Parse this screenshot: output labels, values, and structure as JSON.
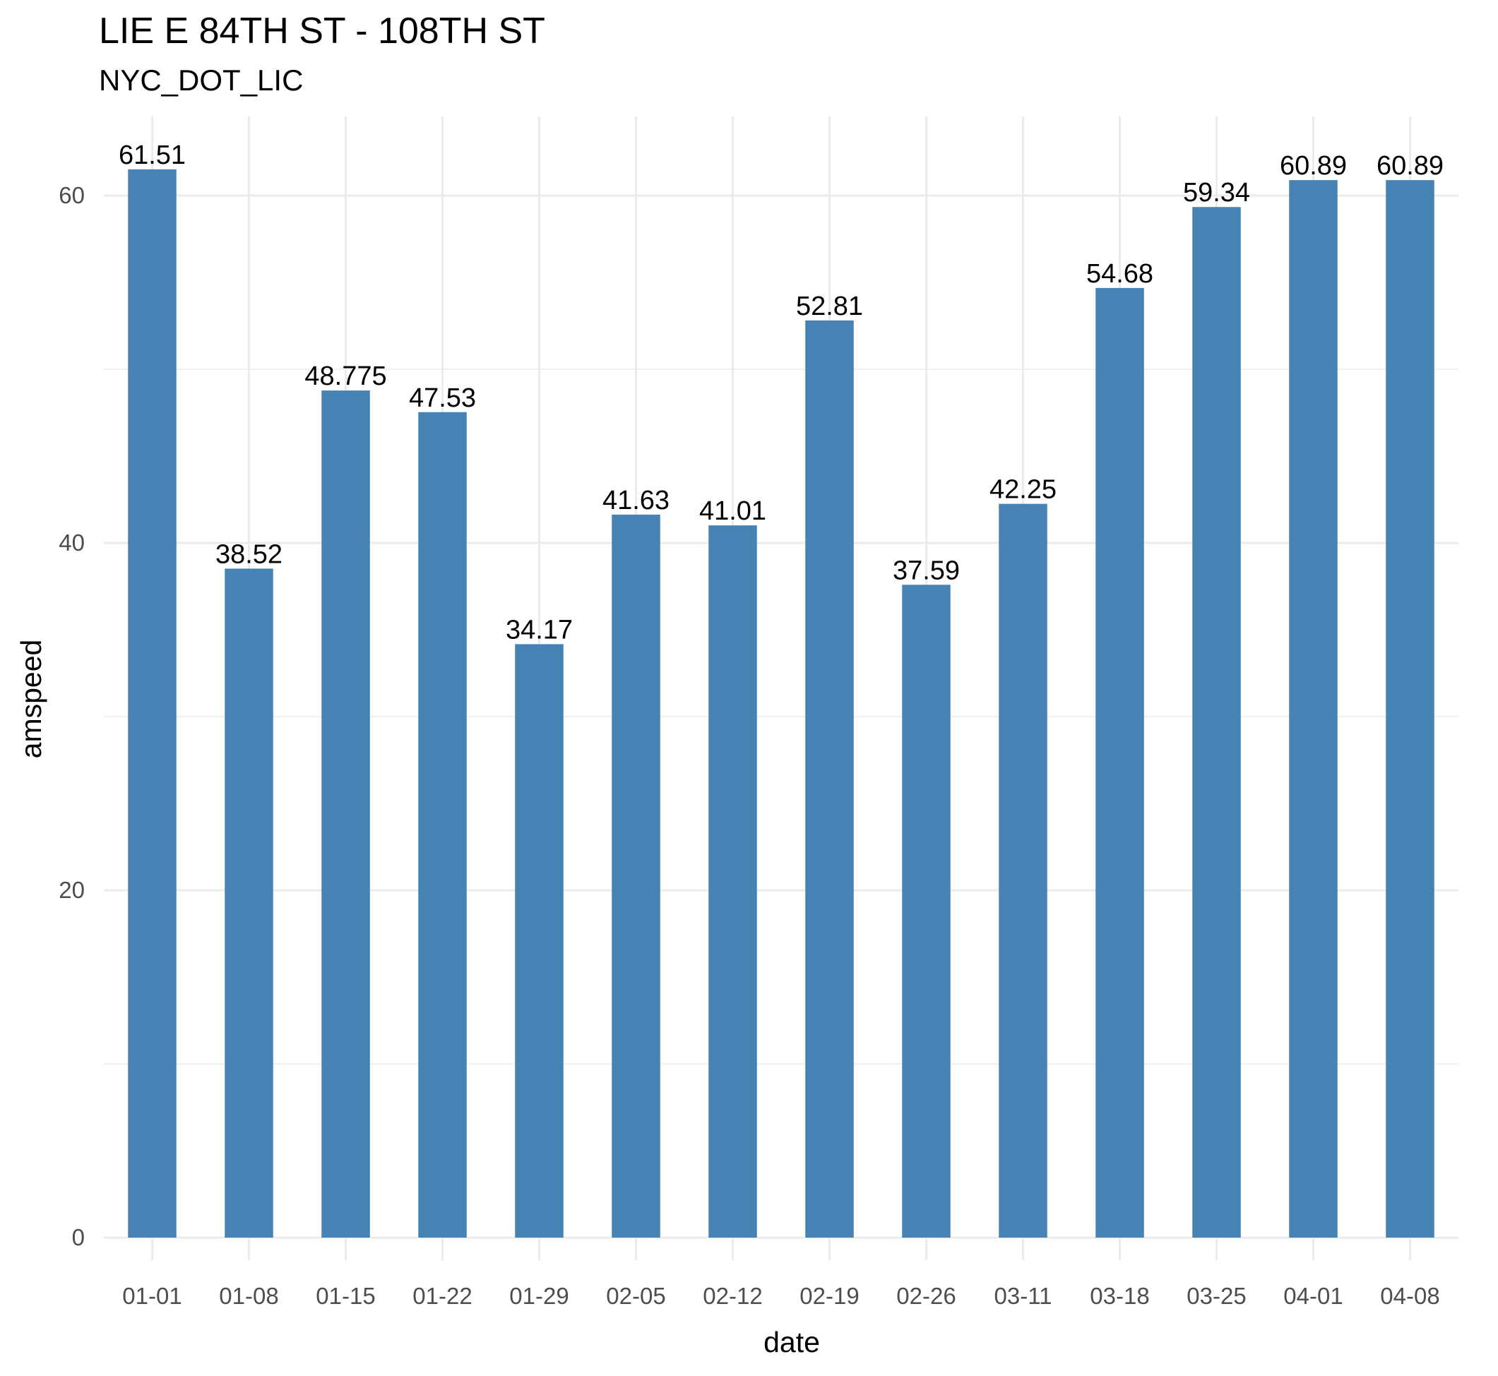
{
  "chart_data": {
    "type": "bar",
    "title": "LIE E 84TH ST - 108TH ST",
    "subtitle": "NYC_DOT_LIC",
    "xlabel": "date",
    "ylabel": "amspeed",
    "categories": [
      "01-01",
      "01-08",
      "01-15",
      "01-22",
      "01-29",
      "02-05",
      "02-12",
      "02-19",
      "02-26",
      "03-11",
      "03-18",
      "03-25",
      "04-01",
      "04-08"
    ],
    "values": [
      61.51,
      38.52,
      48.775,
      47.53,
      34.17,
      41.63,
      41.01,
      52.81,
      37.59,
      42.25,
      54.68,
      59.34,
      60.89,
      60.89
    ],
    "value_labels": [
      "61.51",
      "38.52",
      "48.775",
      "47.53",
      "34.17",
      "41.63",
      "41.01",
      "52.81",
      "37.59",
      "42.25",
      "54.68",
      "59.34",
      "60.89",
      "60.89"
    ],
    "ylim": [
      0,
      64
    ],
    "yticks": [
      0,
      20,
      40,
      60
    ],
    "ytick_labels": [
      "0",
      "20",
      "40",
      "60"
    ],
    "grid": true,
    "legend": "none",
    "bar_color": "#4682B4",
    "grid_color": "#EBEBEB"
  }
}
